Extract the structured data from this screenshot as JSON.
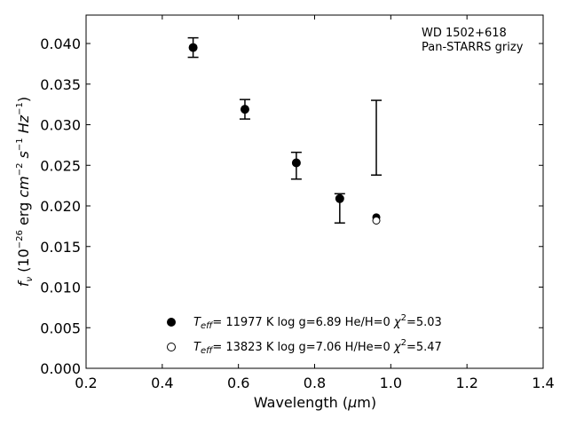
{
  "chart_data": {
    "type": "scatter",
    "title": "",
    "annotation": [
      "WD 1502+618",
      "Pan-STARRS grizy"
    ],
    "xlabel": {
      "text": "Wavelength (",
      "symbol": "μ",
      "unit": "m)"
    },
    "ylabel": {
      "f": "f",
      "f_sub": "ν",
      "open": " (10",
      "exp1": "−26",
      "mid": " erg ",
      "cm": "cm",
      "exp2": "−2",
      "s": " s",
      "exp3": "−1",
      "hz": " Hz",
      "exp4": "−1",
      "close": ")"
    },
    "xlim": [
      0.2,
      1.4
    ],
    "ylim": [
      0.0,
      0.0435
    ],
    "xticks": [
      0.2,
      0.4,
      0.6,
      0.8,
      1.0,
      1.2,
      1.4
    ],
    "xtick_labels": [
      "0.2",
      "0.4",
      "0.6",
      "0.8",
      "1.0",
      "1.2",
      "1.4"
    ],
    "yticks": [
      0.0,
      0.005,
      0.01,
      0.015,
      0.02,
      0.025,
      0.03,
      0.035,
      0.04
    ],
    "ytick_labels": [
      "0.000",
      "0.005",
      "0.010",
      "0.015",
      "0.020",
      "0.025",
      "0.030",
      "0.035",
      "0.040"
    ],
    "grid": false,
    "legend_position": "bottom-center",
    "observed": {
      "x": [
        0.481,
        0.617,
        0.752,
        0.866,
        0.962
      ],
      "y": [
        0.0395,
        0.0319,
        0.0253,
        0.0209,
        null
      ],
      "yerr_low": [
        0.0383,
        0.0307,
        0.0233,
        0.0179,
        0.0238
      ],
      "yerr_high": [
        0.0407,
        0.0331,
        0.0266,
        0.0215,
        0.033
      ]
    },
    "series": [
      {
        "name": "He/H=0 model",
        "marker": "filled-circle",
        "x": [
          0.962
        ],
        "y": [
          0.0186
        ],
        "legend": {
          "t": "T",
          "t_sub": "eff",
          "t_val": "= 11977 K  log g=6.89  He/H=0  ",
          "chi": "χ",
          "chi_sup": "2",
          "chi_val": "=5.03"
        }
      },
      {
        "name": "H/He=0 model",
        "marker": "open-circle",
        "x": [
          0.962
        ],
        "y": [
          0.0182
        ],
        "legend": {
          "t": "T",
          "t_sub": "eff",
          "t_val": "= 13823 K  log g=7.06  H/He=0  ",
          "chi": "χ",
          "chi_sup": "2",
          "chi_val": "=5.47"
        }
      }
    ]
  }
}
